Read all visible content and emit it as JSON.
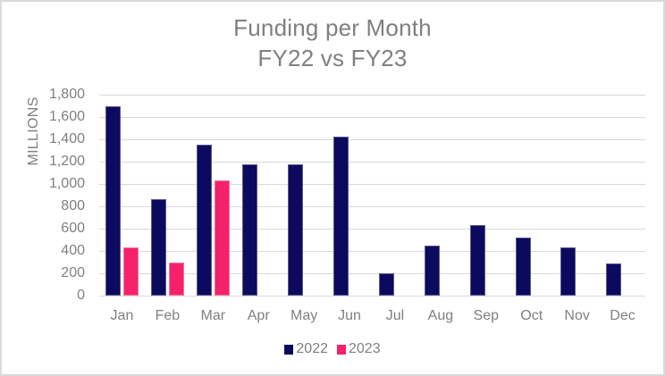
{
  "chart_data": {
    "type": "bar",
    "title": "Funding per Month FY22 vs FY23",
    "title_lines": [
      "Funding per Month",
      "FY22 vs FY23"
    ],
    "xlabel": "",
    "ylabel": "MILLIONS",
    "ylim": [
      0,
      1800
    ],
    "yticks": [
      0,
      200,
      400,
      600,
      800,
      1000,
      1200,
      1400,
      1600,
      1800
    ],
    "ytick_labels": [
      "0",
      "200",
      "400",
      "600",
      "800",
      "1,000",
      "1,200",
      "1,400",
      "1,600",
      "1,800"
    ],
    "grid": true,
    "legend_position": "bottom",
    "categories": [
      "Jan",
      "Feb",
      "Mar",
      "Apr",
      "May",
      "Jun",
      "Jul",
      "Aug",
      "Sep",
      "Oct",
      "Nov",
      "Dec"
    ],
    "series": [
      {
        "name": "2022",
        "color": "#0b0a5e",
        "values": [
          1690,
          860,
          1345,
          1170,
          1170,
          1420,
          200,
          445,
          630,
          520,
          425,
          285
        ]
      },
      {
        "name": "2023",
        "color": "#f7216b",
        "values": [
          425,
          290,
          1025,
          null,
          null,
          null,
          null,
          null,
          null,
          null,
          null,
          null
        ]
      }
    ]
  }
}
